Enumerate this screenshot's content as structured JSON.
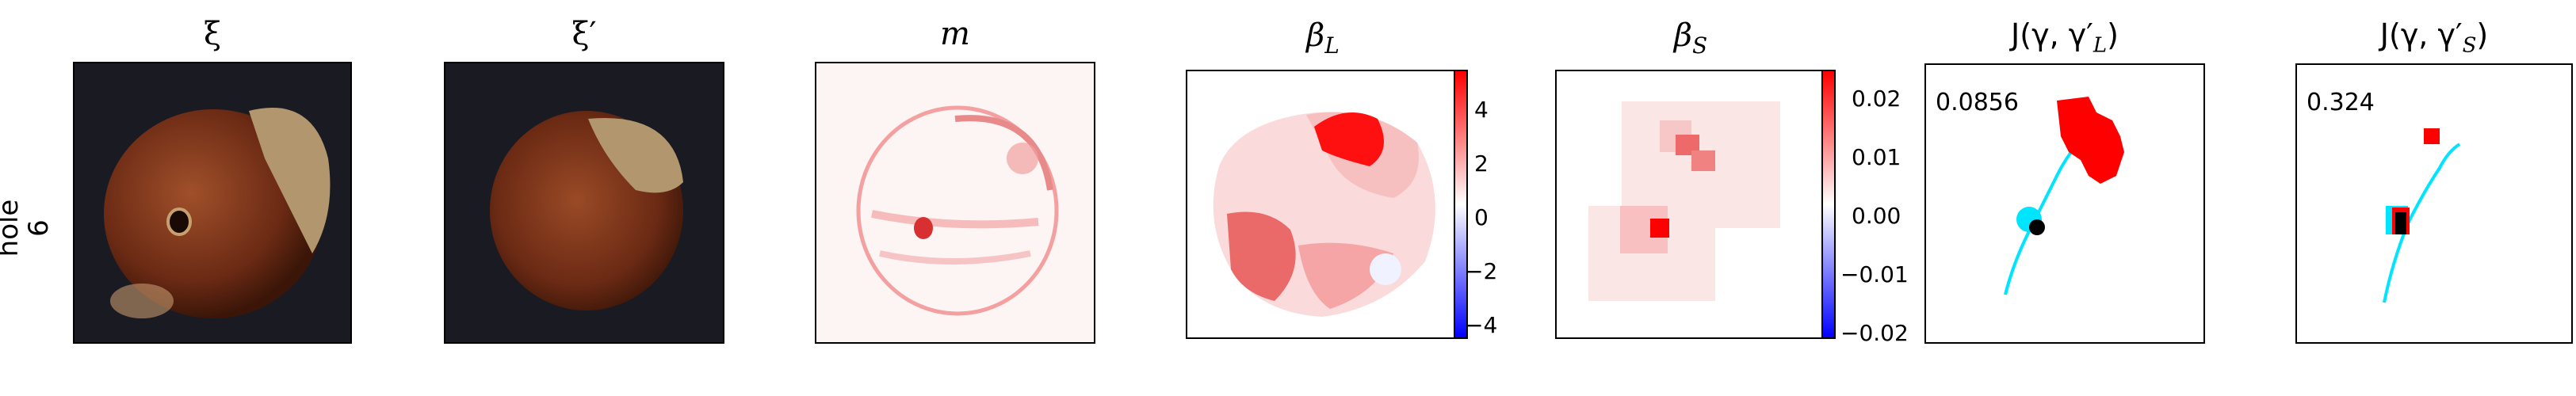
{
  "row_label": {
    "line1": "hole",
    "line2": "6"
  },
  "panels": {
    "xi": {
      "title": "ξ"
    },
    "xi_prime": {
      "title": "ξ′"
    },
    "m": {
      "title": "m"
    },
    "beta_L": {
      "title": "β",
      "sub": "L",
      "colorbar": {
        "min": -5,
        "max": 5,
        "ticks": [
          "4",
          "2",
          "0",
          "−2",
          "−4"
        ],
        "colors": [
          "#0000ff",
          "#ffffff",
          "#ff0000"
        ]
      }
    },
    "beta_S": {
      "title": "β",
      "sub": "S",
      "colorbar": {
        "min": -0.025,
        "max": 0.025,
        "ticks": [
          "0.02",
          "0.01",
          "0.00",
          "−0.01",
          "−0.02"
        ],
        "colors": [
          "#0000ff",
          "#ffffff",
          "#ff0000"
        ]
      }
    },
    "J_L": {
      "title_pre": "J(γ, γ′",
      "sub": "L",
      "title_post": ")",
      "score": "0.0856"
    },
    "J_S": {
      "title_pre": "J(γ, γ′",
      "sub": "S",
      "title_post": ")",
      "score": "0.324"
    }
  },
  "colors": {
    "cyan": "#00e5ff",
    "red": "#ff0000",
    "black": "#000000",
    "nut": "#8b3a1e"
  }
}
